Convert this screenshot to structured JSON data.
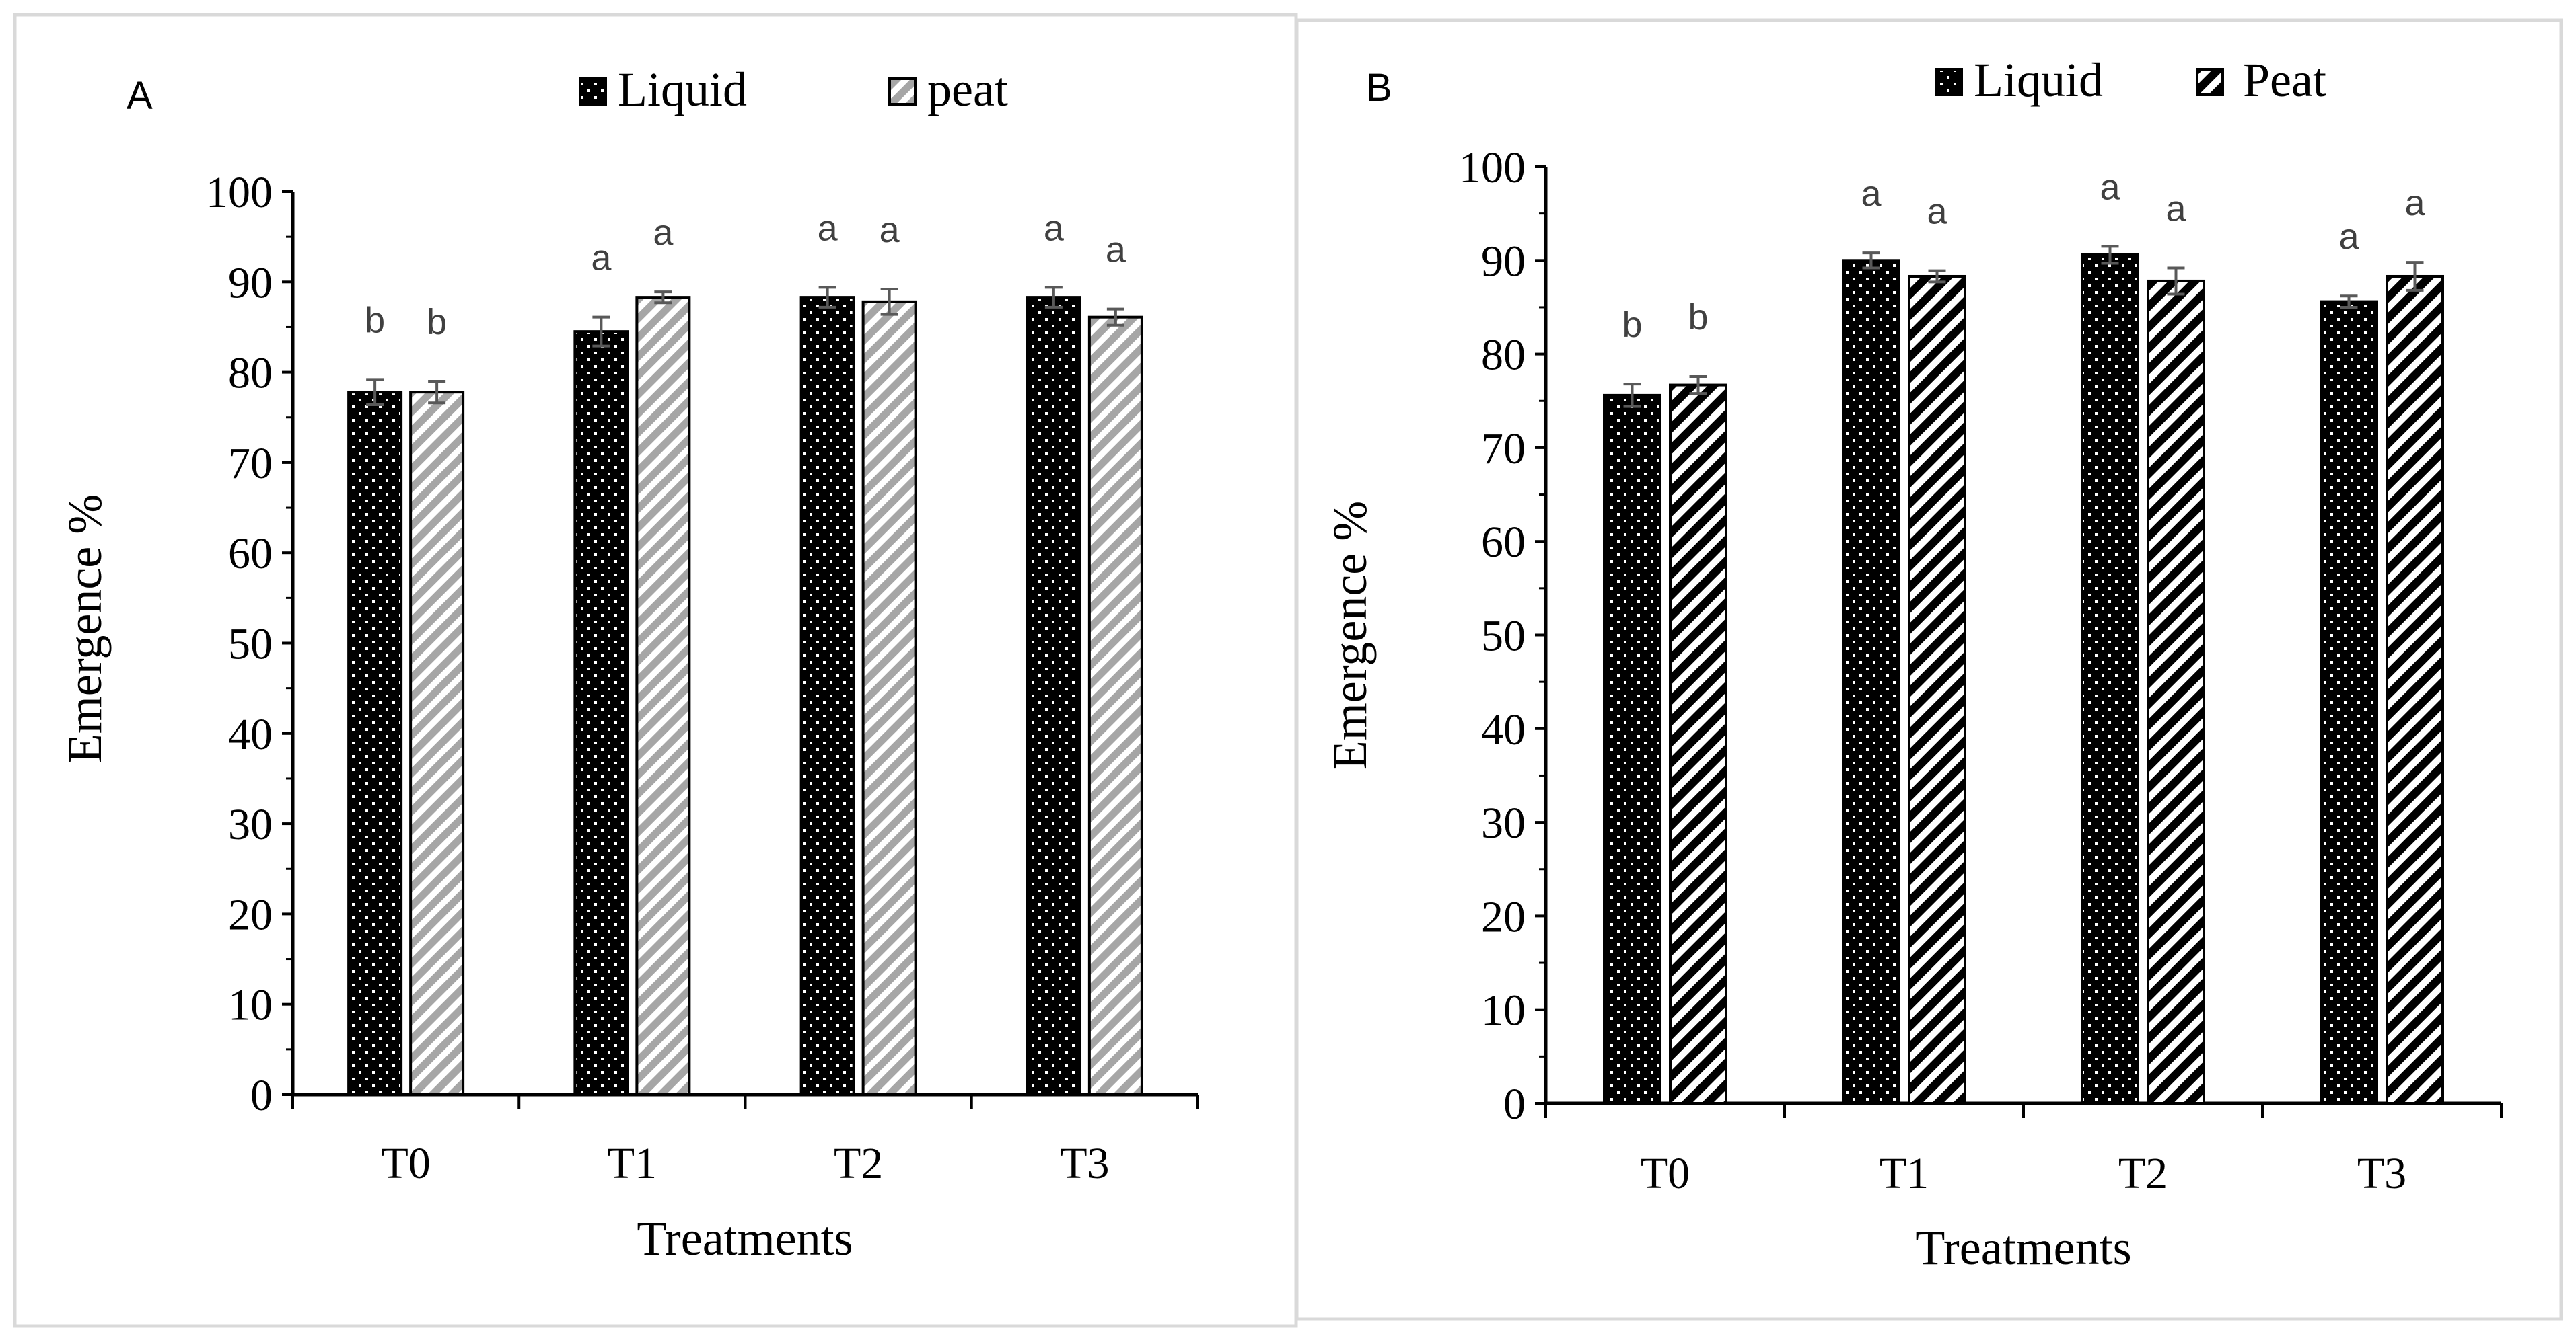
{
  "chart_data": [
    {
      "panel_label": "A",
      "type": "bar",
      "title": "",
      "xlabel": "Treatments",
      "ylabel": "Emergence %",
      "ylim": [
        0,
        100
      ],
      "yticks": [
        "0",
        "10",
        "20",
        "30",
        "40",
        "50",
        "60",
        "70",
        "80",
        "90",
        "100"
      ],
      "categories": [
        "T0",
        "T1",
        "T2",
        "T3"
      ],
      "legend_position": "top-center",
      "series": [
        {
          "name": "Liquid",
          "pattern": "dots",
          "values": [
            77.8,
            84.5,
            88.3,
            88.3
          ],
          "errors": [
            1.4,
            1.6,
            1.1,
            1.1
          ],
          "letters": [
            "b",
            "a",
            "a",
            "a"
          ]
        },
        {
          "name": "peat",
          "pattern": "gray-diagonal",
          "values": [
            77.8,
            88.3,
            87.8,
            86.1
          ],
          "errors": [
            1.2,
            0.6,
            1.4,
            0.9
          ],
          "letters": [
            "b",
            "a",
            "a",
            "a"
          ]
        }
      ]
    },
    {
      "panel_label": "B",
      "type": "bar",
      "title": "",
      "xlabel": "Treatments",
      "ylabel": "Emergence %",
      "ylim": [
        0,
        100
      ],
      "yticks": [
        "0",
        "10",
        "20",
        "30",
        "40",
        "50",
        "60",
        "70",
        "80",
        "90",
        "100"
      ],
      "categories": [
        "T0",
        "T1",
        "T2",
        "T3"
      ],
      "legend_position": "top-center",
      "series": [
        {
          "name": "Liquid",
          "pattern": "dots",
          "values": [
            75.6,
            90.0,
            90.6,
            85.6
          ],
          "errors": [
            1.2,
            0.8,
            0.9,
            0.6
          ],
          "letters": [
            "b",
            "a",
            "a",
            "a"
          ]
        },
        {
          "name": "Peat",
          "pattern": "black-diagonal",
          "values": [
            76.7,
            88.3,
            87.8,
            88.3
          ],
          "errors": [
            0.9,
            0.6,
            1.4,
            1.5
          ],
          "letters": [
            "b",
            "a",
            "a",
            "a"
          ]
        }
      ]
    }
  ],
  "colors": {
    "liquid_fill": "#000000",
    "dot": "#ffffff",
    "peat_a_stripe": "#a6a6a6",
    "peat_b_stripe": "#000000",
    "error_bar": "#595959",
    "letter": "#404040",
    "axis": "#000000",
    "panel_border": "#d9d9d9"
  }
}
